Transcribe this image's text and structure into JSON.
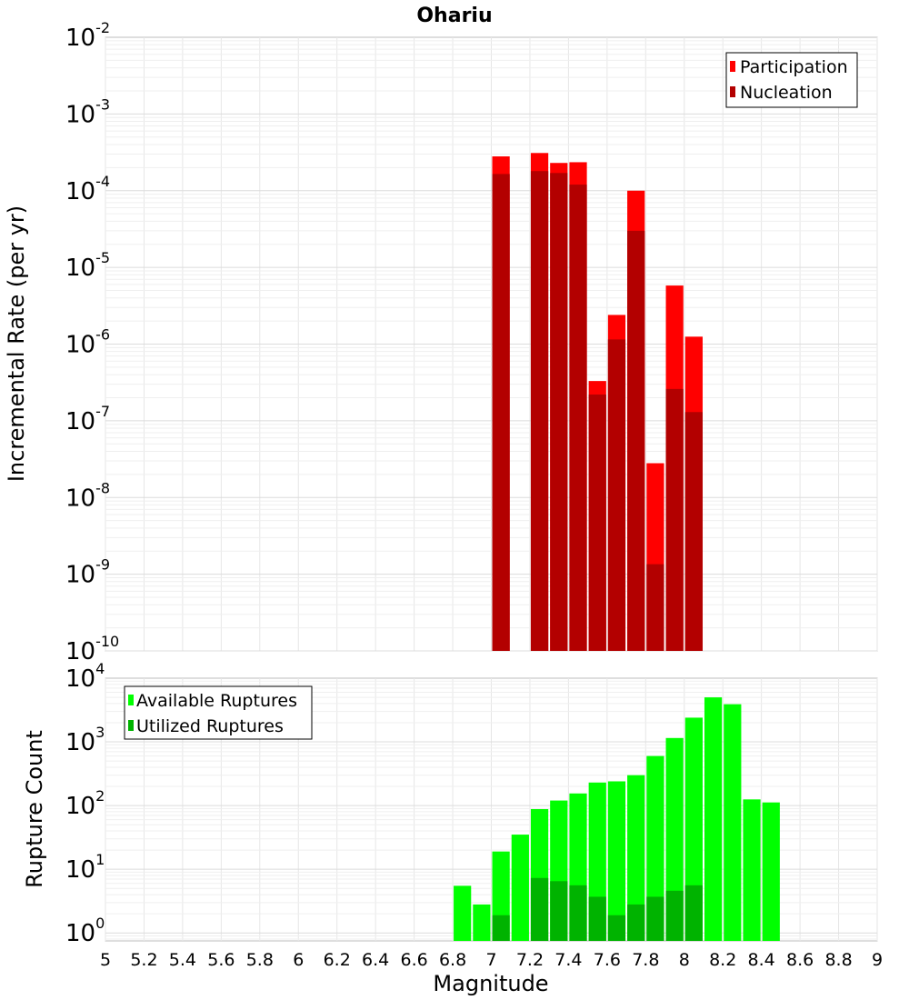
{
  "chart_data": [
    {
      "type": "bar",
      "title": "Ohariu",
      "ylabel": "Incremental Rate (per yr)",
      "xlabel": "",
      "xlim": [
        5,
        9
      ],
      "ylim": [
        1e-10,
        0.01
      ],
      "yscale": "log",
      "ytick_exponents": [
        -10,
        -9,
        -8,
        -7,
        -6,
        -5,
        -4,
        -3,
        -2
      ],
      "grid": true,
      "legend_position": "top-right",
      "bin_width": 0.1,
      "series": [
        {
          "name": "Participation",
          "color": "#ff0000",
          "x": [
            7.05,
            7.25,
            7.35,
            7.45,
            7.55,
            7.65,
            7.75,
            7.85,
            7.95,
            8.05
          ],
          "values": [
            0.00028,
            0.00031,
            0.00023,
            0.000235,
            3.3e-07,
            2.4e-06,
            0.0001,
            2.8e-08,
            5.8e-06,
            1.25e-06
          ]
        },
        {
          "name": "Nucleation",
          "color": "#b30000",
          "x": [
            7.05,
            7.25,
            7.35,
            7.45,
            7.55,
            7.65,
            7.75,
            7.85,
            7.95,
            8.05
          ],
          "values": [
            0.000165,
            0.00018,
            0.00017,
            0.00012,
            2.2e-07,
            1.15e-06,
            3e-05,
            1.35e-09,
            2.6e-07,
            1.3e-07
          ]
        }
      ]
    },
    {
      "type": "bar",
      "title": "",
      "ylabel": "Rupture Count",
      "xlabel": "Magnitude",
      "xlim": [
        5,
        9
      ],
      "ylim": [
        0.75,
        10000
      ],
      "yscale": "log",
      "ytick_exponents": [
        0,
        1,
        2,
        3,
        4
      ],
      "xticks": [
        "5",
        "5.2",
        "5.4",
        "5.6",
        "5.8",
        "6",
        "6.2",
        "6.4",
        "6.6",
        "6.8",
        "7",
        "7.2",
        "7.4",
        "7.6",
        "7.8",
        "8",
        "8.2",
        "8.4",
        "8.6",
        "8.8",
        "9"
      ],
      "grid": true,
      "legend_position": "top-left",
      "bin_width": 0.1,
      "series": [
        {
          "name": "Available Ruptures",
          "color": "#00ff00",
          "x": [
            6.85,
            6.95,
            7.05,
            7.15,
            7.25,
            7.35,
            7.45,
            7.55,
            7.65,
            7.75,
            7.85,
            7.95,
            8.05,
            8.15,
            8.25,
            8.35,
            8.45
          ],
          "values": [
            5.5,
            2.8,
            19,
            35,
            88,
            120,
            155,
            230,
            240,
            300,
            600,
            1150,
            2400,
            5000,
            3900,
            125,
            112
          ]
        },
        {
          "name": "Utilized Ruptures",
          "color": "#00b300",
          "x": [
            7.05,
            7.25,
            7.35,
            7.45,
            7.55,
            7.65,
            7.75,
            7.85,
            7.95,
            8.05
          ],
          "values": [
            1.9,
            7.3,
            6.5,
            5.6,
            3.7,
            1.9,
            2.8,
            3.7,
            4.6,
            5.6
          ]
        }
      ]
    }
  ]
}
